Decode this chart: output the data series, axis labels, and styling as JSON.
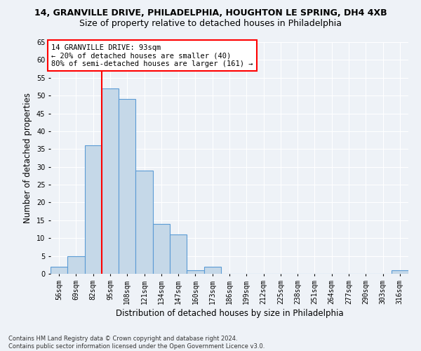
{
  "title_line1": "14, GRANVILLE DRIVE, PHILADELPHIA, HOUGHTON LE SPRING, DH4 4XB",
  "title_line2": "Size of property relative to detached houses in Philadelphia",
  "xlabel": "Distribution of detached houses by size in Philadelphia",
  "ylabel": "Number of detached properties",
  "footnote": "Contains HM Land Registry data © Crown copyright and database right 2024.\nContains public sector information licensed under the Open Government Licence v3.0.",
  "bin_labels": [
    "56sqm",
    "69sqm",
    "82sqm",
    "95sqm",
    "108sqm",
    "121sqm",
    "134sqm",
    "147sqm",
    "160sqm",
    "173sqm",
    "186sqm",
    "199sqm",
    "212sqm",
    "225sqm",
    "238sqm",
    "251sqm",
    "264sqm",
    "277sqm",
    "290sqm",
    "303sqm",
    "316sqm"
  ],
  "bar_heights": [
    2,
    5,
    36,
    52,
    49,
    29,
    14,
    11,
    1,
    2,
    0,
    0,
    0,
    0,
    0,
    0,
    0,
    0,
    0,
    0,
    1
  ],
  "bar_color": "#c5d8e8",
  "bar_edge_color": "#5b9bd5",
  "vline_x": 2.5,
  "annotation_text_line1": "14 GRANVILLE DRIVE: 93sqm",
  "annotation_text_line2": "← 20% of detached houses are smaller (40)",
  "annotation_text_line3": "80% of semi-detached houses are larger (161) →",
  "annotation_box_color": "white",
  "annotation_box_edge": "red",
  "vline_color": "red",
  "ylim": [
    0,
    65
  ],
  "yticks": [
    0,
    5,
    10,
    15,
    20,
    25,
    30,
    35,
    40,
    45,
    50,
    55,
    60,
    65
  ],
  "background_color": "#eef2f7",
  "grid_color": "white",
  "title_fontsize": 9,
  "subtitle_fontsize": 9,
  "axis_label_fontsize": 8.5,
  "tick_fontsize": 7,
  "annotation_fontsize": 7.5
}
